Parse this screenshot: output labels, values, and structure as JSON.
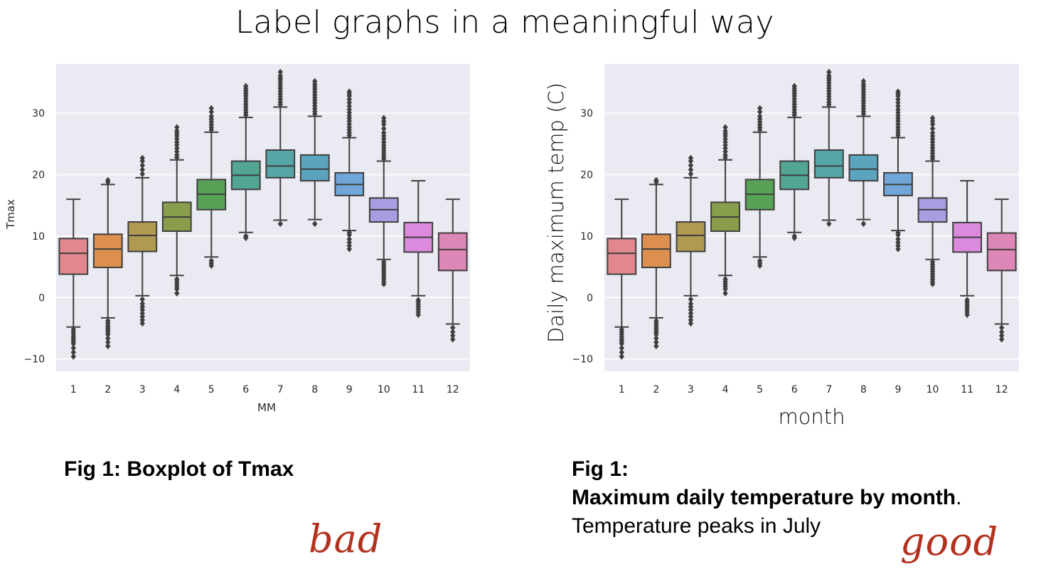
{
  "slide": {
    "title": "Label graphs in a meaningful way"
  },
  "chart_data": [
    {
      "type": "boxplot",
      "panel": "left",
      "title": "",
      "xlabel": "MM",
      "ylabel": "Tmax",
      "ylim": [
        -12,
        38
      ],
      "yticks": [
        -10,
        0,
        10,
        20,
        30
      ],
      "ytick_labels": [
        "−10",
        "0",
        "10",
        "20",
        "30"
      ],
      "categories": [
        "1",
        "2",
        "3",
        "4",
        "5",
        "6",
        "7",
        "8",
        "9",
        "10",
        "11",
        "12"
      ],
      "grid": true,
      "boxes": [
        {
          "q1": 3.8,
          "median": 7.2,
          "q3": 9.6,
          "whisker_low": -4.8,
          "whisker_high": 16.0,
          "outliers_low": [
            -5.2,
            -6.0,
            -6.8,
            -7.5,
            -9.6
          ],
          "outliers_high": []
        },
        {
          "q1": 4.9,
          "median": 7.9,
          "q3": 10.3,
          "whisker_low": -3.3,
          "whisker_high": 18.4,
          "outliers_low": [
            -3.8,
            -4.6,
            -5.3,
            -6.0,
            -7.9
          ],
          "outliers_high": [
            18.8,
            19.1
          ]
        },
        {
          "q1": 7.5,
          "median": 10.1,
          "q3": 12.3,
          "whisker_low": 0.3,
          "whisker_high": 19.5,
          "outliers_low": [
            -0.3,
            -1.0,
            -2.0,
            -4.2
          ],
          "outliers_high": [
            20.1,
            20.8,
            21.5,
            22.2,
            22.7
          ]
        },
        {
          "q1": 10.8,
          "median": 13.1,
          "q3": 15.5,
          "whisker_low": 3.6,
          "whisker_high": 22.4,
          "outliers_low": [
            3.0,
            2.2,
            1.4,
            0.7
          ],
          "outliers_high": [
            23.2,
            24.3,
            25.3,
            26.3,
            27.1,
            27.7
          ]
        },
        {
          "q1": 14.3,
          "median": 16.8,
          "q3": 19.2,
          "whisker_low": 6.6,
          "whisker_high": 26.9,
          "outliers_low": [
            6.0,
            5.2
          ],
          "outliers_high": [
            27.7,
            28.6,
            29.5,
            30.2,
            30.8
          ]
        },
        {
          "q1": 17.6,
          "median": 19.9,
          "q3": 22.2,
          "whisker_low": 10.6,
          "whisker_high": 29.3,
          "outliers_low": [
            10.0,
            9.7
          ],
          "outliers_high": [
            30.1,
            31.0,
            31.9,
            32.8,
            33.6,
            34.4
          ]
        },
        {
          "q1": 19.5,
          "median": 21.4,
          "q3": 24.0,
          "whisker_low": 12.6,
          "whisker_high": 31.0,
          "outliers_low": [
            12.0
          ],
          "outliers_high": [
            31.8,
            32.7,
            33.6,
            34.5,
            35.4,
            36.1,
            36.7
          ]
        },
        {
          "q1": 19.0,
          "median": 20.9,
          "q3": 23.2,
          "whisker_low": 12.7,
          "whisker_high": 29.5,
          "outliers_low": [
            12.0
          ],
          "outliers_high": [
            30.3,
            31.2,
            32.1,
            33.0,
            33.9,
            34.7,
            35.2
          ]
        },
        {
          "q1": 16.6,
          "median": 18.4,
          "q3": 20.3,
          "whisker_low": 10.9,
          "whisker_high": 26.0,
          "outliers_low": [
            10.2,
            9.5,
            7.9
          ],
          "outliers_high": [
            26.8,
            27.7,
            28.7,
            29.6,
            30.6,
            31.7,
            32.8,
            33.5
          ]
        },
        {
          "q1": 12.3,
          "median": 14.3,
          "q3": 16.2,
          "whisker_low": 6.2,
          "whisker_high": 22.2,
          "outliers_low": [
            5.4,
            4.6,
            3.8,
            3.0,
            2.2
          ],
          "outliers_high": [
            23.0,
            23.9,
            24.8,
            25.8,
            26.8,
            27.5,
            28.2,
            29.2
          ]
        },
        {
          "q1": 7.4,
          "median": 9.8,
          "q3": 12.2,
          "whisker_low": 0.3,
          "whisker_high": 19.0,
          "outliers_low": [
            -0.4,
            -1.1,
            -1.9,
            -2.8
          ],
          "outliers_high": []
        },
        {
          "q1": 4.4,
          "median": 7.8,
          "q3": 10.5,
          "whisker_low": -4.3,
          "whisker_high": 16.0,
          "outliers_low": [
            -4.9,
            -5.6,
            -6.8
          ],
          "outliers_high": []
        }
      ]
    },
    {
      "type": "boxplot",
      "panel": "right",
      "title": "",
      "xlabel": "month",
      "ylabel": "Daily maximum temp (C)",
      "ylim": [
        -12,
        38
      ],
      "yticks": [
        -10,
        0,
        10,
        20,
        30
      ],
      "ytick_labels": [
        "−10",
        "0",
        "10",
        "20",
        "30"
      ],
      "categories": [
        "1",
        "2",
        "3",
        "4",
        "5",
        "6",
        "7",
        "8",
        "9",
        "10",
        "11",
        "12"
      ],
      "grid": true,
      "boxes_same_as": "left"
    }
  ],
  "colors": {
    "background": "#eaeaf2",
    "grid": "#ffffff",
    "lines": "#3f3f3f",
    "boxes": [
      "#e1888f",
      "#dd8f4f",
      "#b09a4f",
      "#889e4c",
      "#58a257",
      "#53a594",
      "#56a6a8",
      "#5aa4bd",
      "#71a6d8",
      "#a99ce0",
      "#db8ade",
      "#dd86b8"
    ],
    "bad": "#b3321f"
  },
  "left_caption": {
    "fig_label": "Fig 1: Boxplot of Tmax"
  },
  "right_caption": {
    "fig_label": "Fig 1:",
    "headline": "Maximum daily temperature by month",
    "headline_end": ".",
    "body": "Temperature peaks in July"
  },
  "annotations": {
    "bad": "bad",
    "good": "good"
  }
}
